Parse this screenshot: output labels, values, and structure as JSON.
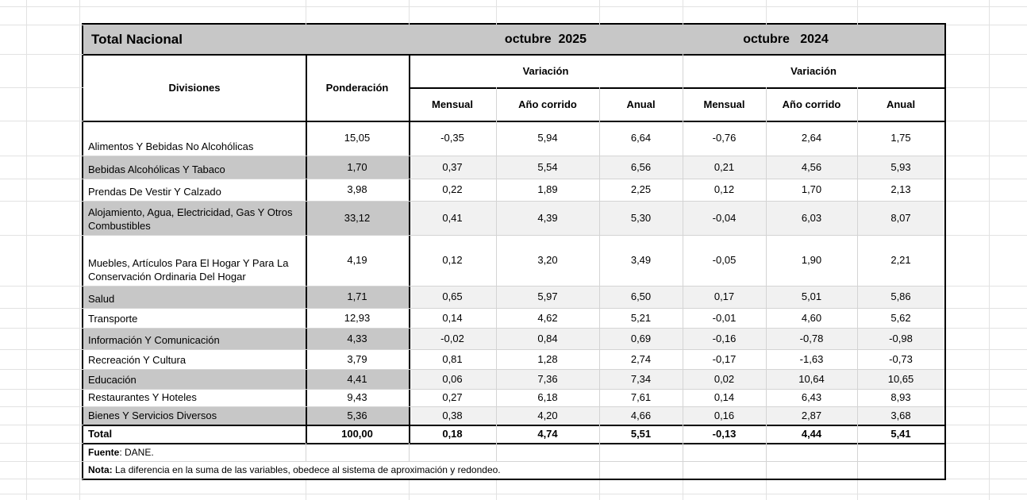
{
  "title_bar": {
    "title": "Total Nacional",
    "period_current": "octubre  2025",
    "period_previous": "octubre   2024"
  },
  "columns": {
    "divisions": "Divisiones",
    "weight": "Ponderación",
    "variation_current": "Variación",
    "variation_previous": "Variación",
    "sub_current": {
      "monthly": "Mensual",
      "ytd": "Año corrido",
      "annual": "Anual"
    },
    "sub_previous": {
      "monthly": "Mensual",
      "ytd": "Año corrido",
      "annual": "Anual"
    }
  },
  "rows": [
    {
      "label": "Alimentos Y Bebidas No Alcohólicas",
      "values": [
        "15,05",
        "-0,35",
        "5,94",
        "6,64",
        "-0,76",
        "2,64",
        "1,75"
      ]
    },
    {
      "label": "Bebidas Alcohólicas Y Tabaco",
      "values": [
        "1,70",
        "0,37",
        "5,54",
        "6,56",
        "0,21",
        "4,56",
        "5,93"
      ]
    },
    {
      "label": "Prendas De Vestir Y Calzado",
      "values": [
        "3,98",
        "0,22",
        "1,89",
        "2,25",
        "0,12",
        "1,70",
        "2,13"
      ]
    },
    {
      "label": "Alojamiento, Agua, Electricidad, Gas Y Otros Combustibles",
      "values": [
        "33,12",
        "0,41",
        "4,39",
        "5,30",
        "-0,04",
        "6,03",
        "8,07"
      ]
    },
    {
      "label": "Muebles, Artículos Para El Hogar Y Para La Conservación Ordinaria Del Hogar",
      "values": [
        "4,19",
        "0,12",
        "3,20",
        "3,49",
        "-0,05",
        "1,90",
        "2,21"
      ]
    },
    {
      "label": "Salud",
      "values": [
        "1,71",
        "0,65",
        "5,97",
        "6,50",
        "0,17",
        "5,01",
        "5,86"
      ]
    },
    {
      "label": "Transporte",
      "values": [
        "12,93",
        "0,14",
        "4,62",
        "5,21",
        "-0,01",
        "4,60",
        "5,62"
      ]
    },
    {
      "label": "Información Y Comunicación",
      "values": [
        "4,33",
        "-0,02",
        "0,84",
        "0,69",
        "-0,16",
        "-0,78",
        "-0,98"
      ]
    },
    {
      "label": "Recreación Y Cultura",
      "values": [
        "3,79",
        "0,81",
        "1,28",
        "2,74",
        "-0,17",
        "-1,63",
        "-0,73"
      ]
    },
    {
      "label": "Educación",
      "values": [
        "4,41",
        "0,06",
        "7,36",
        "7,34",
        "0,02",
        "10,64",
        "10,65"
      ]
    },
    {
      "label": "Restaurantes Y Hoteles",
      "values": [
        "9,43",
        "0,27",
        "6,18",
        "7,61",
        "0,14",
        "6,43",
        "8,93"
      ]
    },
    {
      "label": "Bienes Y Servicios Diversos",
      "values": [
        "5,36",
        "0,38",
        "4,20",
        "4,66",
        "0,16",
        "2,87",
        "3,68"
      ]
    }
  ],
  "total_row": {
    "label": "Total",
    "values": [
      "100,00",
      "0,18",
      "4,74",
      "5,51",
      "-0,13",
      "4,44",
      "5,41"
    ]
  },
  "footer": {
    "source_label": "Fuente",
    "source_text": ": DANE.",
    "note_label": "Nota:",
    "note_text": " La diferencia en la suma de las variables, obedece al sistema de aproximación y redondeo."
  },
  "colors": {
    "header_fill": "#c7c7c7",
    "shaded_label_fill": "#c7c7c7",
    "shaded_value_fill": "#f1f1f1",
    "strong_border": "#000000",
    "faint_grid": "#d4d4d4",
    "outer_grid": "#e2e2e2"
  }
}
